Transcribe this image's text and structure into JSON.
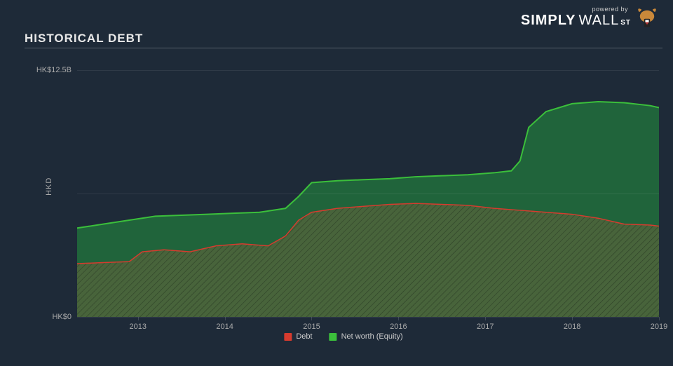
{
  "branding": {
    "powered_by": "powered by",
    "logo_bold": "SIMPLY",
    "logo_light": "WALL",
    "logo_st": "ST"
  },
  "title": "HISTORICAL DEBT",
  "chart": {
    "type": "area",
    "background_color": "#1e2a38",
    "grid_color": "rgba(255,255,255,0.08)",
    "y_axis_label": "HKD",
    "y_axis": {
      "min": 0,
      "max": 12.5,
      "ticks": [
        {
          "v": 0,
          "label": "HK$0"
        },
        {
          "v": 12.5,
          "label": "HK$12.5B"
        }
      ],
      "grid_at": [
        0,
        6.25,
        12.5
      ]
    },
    "x_axis": {
      "min": 2012.3,
      "max": 2019.0,
      "ticks": [
        2013,
        2014,
        2015,
        2016,
        2017,
        2018,
        2019
      ]
    },
    "series": [
      {
        "id": "equity",
        "label": "Net worth (Equity)",
        "stroke": "#3bbf3b",
        "fill": "rgba(33,110,60,0.85)",
        "stroke_width": 2,
        "points": [
          [
            2012.3,
            4.5
          ],
          [
            2012.6,
            4.7
          ],
          [
            2012.9,
            4.9
          ],
          [
            2013.2,
            5.1
          ],
          [
            2013.5,
            5.15
          ],
          [
            2013.8,
            5.2
          ],
          [
            2014.1,
            5.25
          ],
          [
            2014.4,
            5.3
          ],
          [
            2014.7,
            5.5
          ],
          [
            2014.85,
            6.1
          ],
          [
            2015.0,
            6.8
          ],
          [
            2015.3,
            6.9
          ],
          [
            2015.6,
            6.95
          ],
          [
            2015.9,
            7.0
          ],
          [
            2016.2,
            7.1
          ],
          [
            2016.5,
            7.15
          ],
          [
            2016.8,
            7.2
          ],
          [
            2017.1,
            7.3
          ],
          [
            2017.3,
            7.4
          ],
          [
            2017.4,
            7.9
          ],
          [
            2017.5,
            9.6
          ],
          [
            2017.7,
            10.4
          ],
          [
            2018.0,
            10.8
          ],
          [
            2018.3,
            10.9
          ],
          [
            2018.6,
            10.85
          ],
          [
            2018.9,
            10.7
          ],
          [
            2019.0,
            10.6
          ]
        ]
      },
      {
        "id": "debt",
        "label": "Debt",
        "stroke": "#d63b2e",
        "fill_pattern": true,
        "pattern_stroke": "rgba(0,0,0,0.35)",
        "fill_base": "rgba(120,100,60,0.55)",
        "stroke_width": 1.5,
        "points": [
          [
            2012.3,
            2.7
          ],
          [
            2012.6,
            2.75
          ],
          [
            2012.9,
            2.8
          ],
          [
            2013.05,
            3.3
          ],
          [
            2013.3,
            3.4
          ],
          [
            2013.6,
            3.3
          ],
          [
            2013.9,
            3.6
          ],
          [
            2014.2,
            3.7
          ],
          [
            2014.5,
            3.6
          ],
          [
            2014.7,
            4.1
          ],
          [
            2014.85,
            4.9
          ],
          [
            2015.0,
            5.3
          ],
          [
            2015.3,
            5.5
          ],
          [
            2015.6,
            5.6
          ],
          [
            2015.9,
            5.7
          ],
          [
            2016.2,
            5.75
          ],
          [
            2016.5,
            5.7
          ],
          [
            2016.8,
            5.65
          ],
          [
            2017.1,
            5.5
          ],
          [
            2017.4,
            5.4
          ],
          [
            2017.7,
            5.3
          ],
          [
            2018.0,
            5.2
          ],
          [
            2018.3,
            5.0
          ],
          [
            2018.6,
            4.7
          ],
          [
            2018.9,
            4.65
          ],
          [
            2019.0,
            4.6
          ]
        ]
      }
    ],
    "legend": [
      {
        "label": "Debt",
        "color": "#d63b2e"
      },
      {
        "label": "Net worth (Equity)",
        "color": "#3bbf3b"
      }
    ]
  }
}
